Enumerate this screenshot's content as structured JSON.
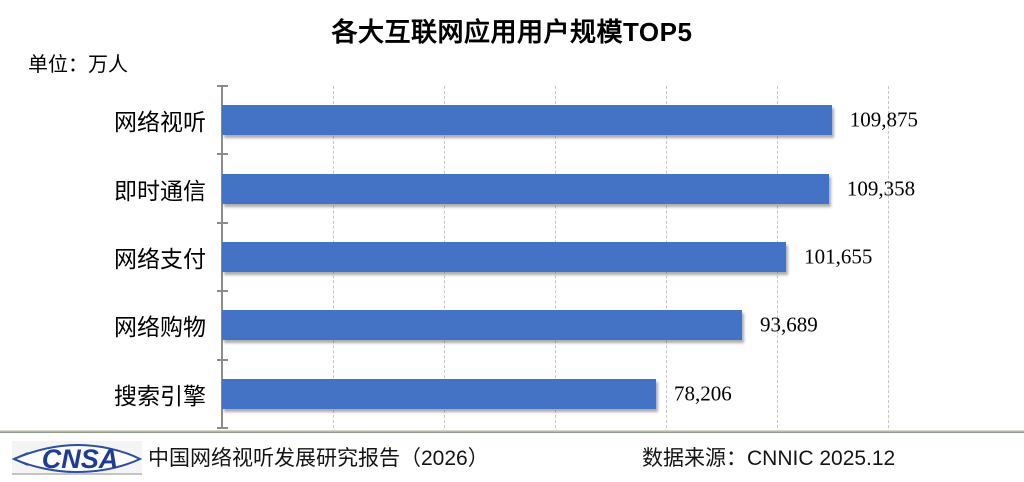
{
  "title": "各大互联网应用用户规模TOP5",
  "unit_label": "单位：万人",
  "footer": {
    "logo_text": "CNSA",
    "report": "中国网络视听发展研究报告（2026）",
    "source": "数据来源：CNNIC 2025.12"
  },
  "colors": {
    "bar": "#4472c4",
    "gridline": "#c6c6c6",
    "axis": "#8c8c8c",
    "separator": "#7c8d76",
    "logo_blue": "#1e3c96"
  },
  "chart_data": {
    "type": "bar",
    "orientation": "horizontal",
    "title": "各大互联网应用用户规模TOP5",
    "unit": "万人",
    "categories": [
      "网络视听",
      "即时通信",
      "网络支付",
      "网络购物",
      "搜索引擎"
    ],
    "values": [
      109875,
      109358,
      101655,
      93689,
      78206
    ],
    "value_labels": [
      "109,875",
      "109,358",
      "101,655",
      "93,689",
      "78,206"
    ],
    "xlabel": "",
    "ylabel": "",
    "xlim": [
      0,
      120000
    ],
    "grid_interval": 20000,
    "grid": "vertical-dashed",
    "legend": "none",
    "data_labels": "outside-end"
  }
}
